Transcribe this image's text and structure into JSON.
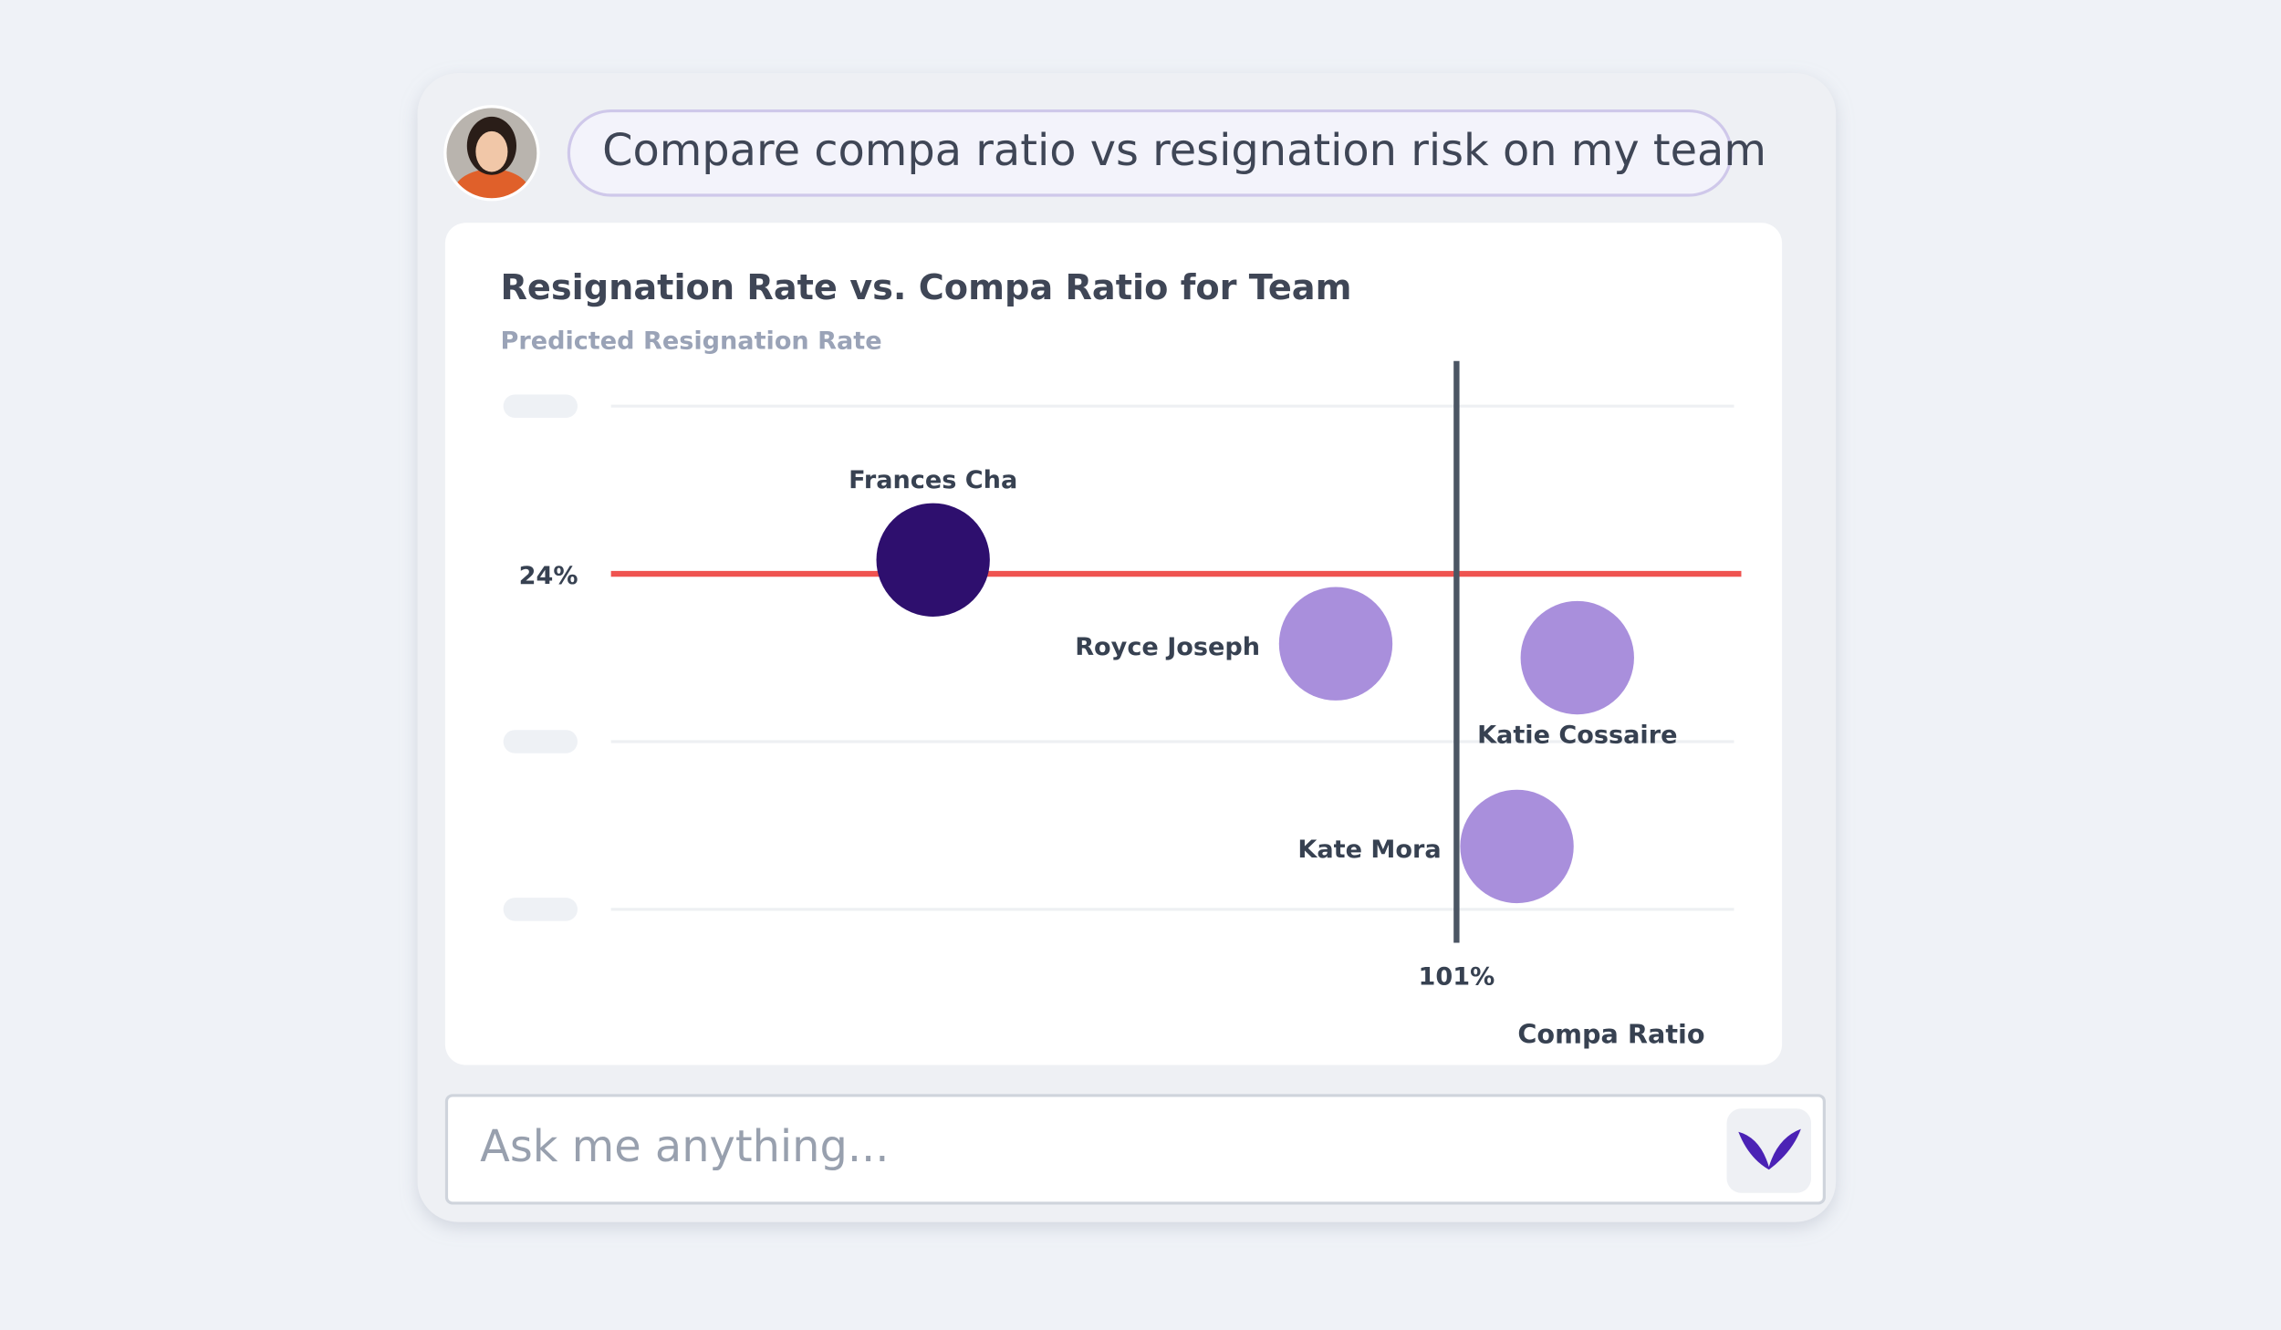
{
  "prompt": "Compare compa ratio vs resignation risk on my team",
  "chart_data": {
    "type": "scatter",
    "title": "Resignation Rate vs. Compa Ratio for Team",
    "y_label": "Predicted Resignation Rate",
    "x_label": "Compa Ratio",
    "series": [
      {
        "x": [
          88,
          98,
          104,
          102.5
        ],
        "values": [
          25,
          19,
          18,
          4.5
        ],
        "labels": [
          "Frances Cha",
          "Royce Joseph",
          "Katie Cossaire",
          "Kate Mora"
        ],
        "colors": [
          "#2e0f6e",
          "#a98fdc",
          "#a98fdc",
          "#a98fdc"
        ],
        "label_positions": [
          "top",
          "left",
          "bottom",
          "left"
        ]
      }
    ],
    "xlim": [
      80,
      108
    ],
    "ylim": [
      0,
      36
    ],
    "yticks": [
      0,
      12,
      36
    ],
    "grid": true,
    "reference_lines": {
      "x": {
        "value": 101,
        "label": "101%",
        "color": "#4b5563"
      },
      "y": {
        "value": 24,
        "label": "24%",
        "color": "#ef5350"
      }
    }
  },
  "input_placeholder": "Ask me anything..."
}
